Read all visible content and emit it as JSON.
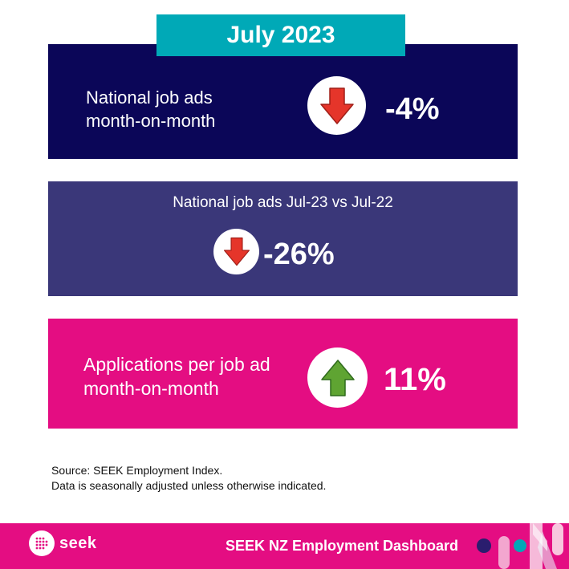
{
  "header": {
    "month": "July 2023"
  },
  "cards": [
    {
      "label_line1": "National job ads",
      "label_line2": "month-on-month",
      "value": "-4%",
      "direction": "down",
      "icon": "down-arrow-icon",
      "bg_color": "#0b0658"
    },
    {
      "label": "National job ads Jul-23 vs Jul-22",
      "value": "-26%",
      "direction": "down",
      "icon": "down-arrow-icon",
      "bg_color": "#3a3779"
    },
    {
      "label_line1": "Applications per job ad",
      "label_line2": "month-on-month",
      "value": "11%",
      "direction": "up",
      "icon": "up-arrow-icon",
      "bg_color": "#e40d82"
    }
  ],
  "source": {
    "line1": "Source: SEEK Employment Index.",
    "line2": "Data is seasonally adjusted unless otherwise indicated."
  },
  "footer": {
    "logo_text": "seek",
    "title": "SEEK NZ Employment Dashboard"
  },
  "colors": {
    "accent_teal": "#00a9b7",
    "navy": "#0b0658",
    "purple": "#3a3779",
    "pink": "#e40d82",
    "arrow_down": "#e5352a",
    "arrow_up": "#5fa432"
  }
}
